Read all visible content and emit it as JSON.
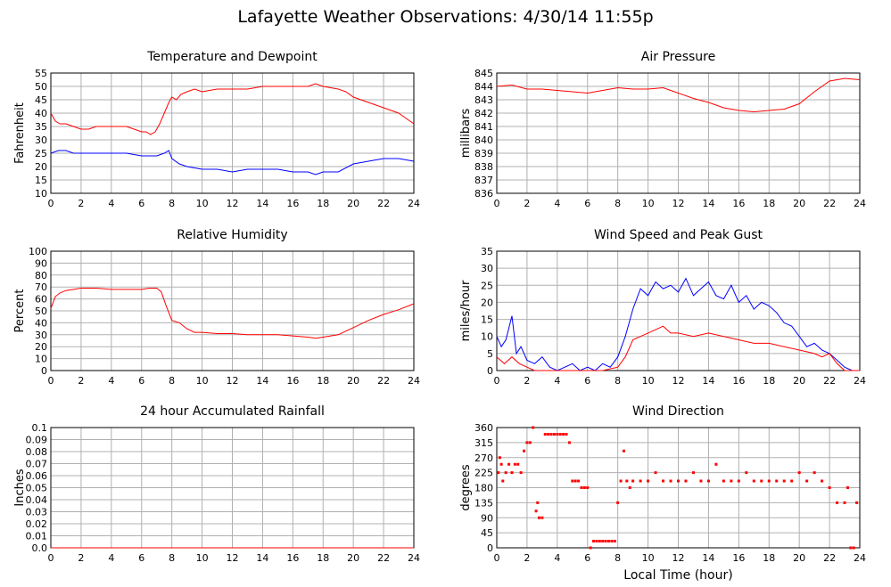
{
  "title": "Lafayette Weather Observations: 4/30/14 11:55p",
  "xlabel_bottom": "Local Time (hour)",
  "colors": {
    "red": "#ff0000",
    "blue": "#0000ff",
    "grid": "#b0b0b0"
  },
  "chart_data": [
    {
      "id": "temp",
      "type": "line",
      "title": "Temperature and Dewpoint",
      "ylabel": "Fahrenheit",
      "xlabel": "",
      "xlim": [
        0,
        24
      ],
      "ylim": [
        10,
        55
      ],
      "yticks": [
        "10",
        "15",
        "20",
        "25",
        "30",
        "35",
        "40",
        "45",
        "50",
        "55"
      ],
      "xticks": [
        "0",
        "2",
        "4",
        "6",
        "8",
        "10",
        "12",
        "14",
        "16",
        "18",
        "20",
        "22",
        "24"
      ],
      "series": [
        {
          "color": "#ff0000",
          "x": [
            0,
            0.3,
            0.6,
            1,
            1.5,
            2,
            2.5,
            3,
            3.5,
            4,
            4.5,
            5,
            5.5,
            6,
            6.3,
            6.6,
            6.9,
            7.2,
            7.5,
            7.8,
            8,
            8.3,
            8.6,
            9,
            9.5,
            10,
            11,
            12,
            13,
            14,
            15,
            16,
            17,
            17.5,
            18,
            19,
            19.5,
            20,
            21,
            22,
            23,
            24
          ],
          "y": [
            40,
            37,
            36,
            36,
            35,
            34,
            34,
            35,
            35,
            35,
            35,
            35,
            34,
            33,
            33,
            32,
            33,
            36,
            40,
            44,
            46,
            45,
            47,
            48,
            49,
            48,
            49,
            49,
            49,
            50,
            50,
            50,
            50,
            51,
            50,
            49,
            48,
            46,
            44,
            42,
            40,
            36
          ]
        },
        {
          "color": "#0000ff",
          "x": [
            0,
            0.5,
            1,
            1.5,
            2,
            3,
            4,
            5,
            6,
            7,
            7.5,
            7.8,
            8,
            8.5,
            9,
            10,
            11,
            12,
            13,
            14,
            15,
            16,
            17,
            17.5,
            18,
            18.5,
            19,
            20,
            21,
            22,
            23,
            24
          ],
          "y": [
            25,
            26,
            26,
            25,
            25,
            25,
            25,
            25,
            24,
            24,
            25,
            26,
            23,
            21,
            20,
            19,
            19,
            18,
            19,
            19,
            19,
            18,
            18,
            17,
            18,
            18,
            18,
            21,
            22,
            23,
            23,
            22
          ]
        }
      ]
    },
    {
      "id": "pressure",
      "type": "line",
      "title": "Air Pressure",
      "ylabel": "millibars",
      "xlabel": "",
      "xlim": [
        0,
        24
      ],
      "ylim": [
        836,
        845
      ],
      "yticks": [
        "836",
        "837",
        "838",
        "839",
        "840",
        "841",
        "842",
        "843",
        "844",
        "845"
      ],
      "xticks": [
        "0",
        "2",
        "4",
        "6",
        "8",
        "10",
        "12",
        "14",
        "16",
        "18",
        "20",
        "22",
        "24"
      ],
      "series": [
        {
          "color": "#ff0000",
          "x": [
            0,
            1,
            2,
            3,
            4,
            5,
            6,
            7,
            8,
            9,
            10,
            11,
            12,
            13,
            14,
            15,
            16,
            17,
            18,
            19,
            20,
            21,
            22,
            23,
            24
          ],
          "y": [
            844.0,
            844.1,
            843.8,
            843.8,
            843.7,
            843.6,
            843.5,
            843.7,
            843.9,
            843.8,
            843.8,
            843.9,
            843.5,
            843.1,
            842.8,
            842.4,
            842.2,
            842.1,
            842.2,
            842.3,
            842.7,
            843.6,
            844.4,
            844.6,
            844.5
          ]
        }
      ]
    },
    {
      "id": "humidity",
      "type": "line",
      "title": "Relative Humidity",
      "ylabel": "Percent",
      "xlabel": "",
      "xlim": [
        0,
        24
      ],
      "ylim": [
        0,
        100
      ],
      "yticks": [
        "0",
        "10",
        "20",
        "30",
        "40",
        "50",
        "60",
        "70",
        "80",
        "90",
        "100"
      ],
      "xticks": [
        "0",
        "2",
        "4",
        "6",
        "8",
        "10",
        "12",
        "14",
        "16",
        "18",
        "20",
        "22",
        "24"
      ],
      "series": [
        {
          "color": "#ff0000",
          "x": [
            0,
            0.3,
            0.6,
            1,
            2,
            3,
            4,
            5,
            6,
            6.5,
            7,
            7.3,
            7.6,
            8,
            8.5,
            9,
            9.5,
            10,
            11,
            12,
            13,
            14,
            15,
            16,
            17,
            17.5,
            18,
            19,
            20,
            21,
            22,
            23,
            24
          ],
          "y": [
            52,
            62,
            65,
            67,
            69,
            69,
            68,
            68,
            68,
            69,
            69,
            66,
            55,
            42,
            40,
            35,
            32,
            32,
            31,
            31,
            30,
            30,
            30,
            29,
            28,
            27,
            28,
            30,
            36,
            42,
            47,
            51,
            56
          ]
        }
      ]
    },
    {
      "id": "wind",
      "type": "line",
      "title": "Wind Speed and Peak Gust",
      "ylabel": "miles/hour",
      "xlabel": "",
      "xlim": [
        0,
        24
      ],
      "ylim": [
        0,
        35
      ],
      "yticks": [
        "0",
        "5",
        "10",
        "15",
        "20",
        "25",
        "30",
        "35"
      ],
      "xticks": [
        "0",
        "2",
        "4",
        "6",
        "8",
        "10",
        "12",
        "14",
        "16",
        "18",
        "20",
        "22",
        "24"
      ],
      "series": [
        {
          "color": "#0000ff",
          "x": [
            0,
            0.3,
            0.6,
            1,
            1.3,
            1.6,
            2,
            2.5,
            3,
            3.5,
            4,
            4.5,
            5,
            5.5,
            6,
            6.5,
            7,
            7.5,
            8,
            8.5,
            9,
            9.5,
            10,
            10.5,
            11,
            11.5,
            12,
            12.5,
            13,
            13.5,
            14,
            14.5,
            15,
            15.5,
            16,
            16.5,
            17,
            17.5,
            18,
            18.5,
            19,
            19.5,
            20,
            20.5,
            21,
            21.5,
            22,
            22.5,
            23,
            23.5,
            24
          ],
          "y": [
            10,
            7,
            9,
            16,
            5,
            7,
            3,
            2,
            4,
            1,
            0,
            1,
            2,
            0,
            1,
            0,
            2,
            1,
            4,
            10,
            18,
            24,
            22,
            26,
            24,
            25,
            23,
            27,
            22,
            24,
            26,
            22,
            21,
            25,
            20,
            22,
            18,
            20,
            19,
            17,
            14,
            13,
            10,
            7,
            8,
            6,
            5,
            3,
            1,
            0,
            0
          ]
        },
        {
          "color": "#ff0000",
          "x": [
            0,
            0.5,
            1,
            1.5,
            2,
            2.5,
            3,
            4,
            5,
            6,
            7,
            8,
            8.5,
            9,
            9.5,
            10,
            10.5,
            11,
            11.5,
            12,
            13,
            14,
            15,
            16,
            17,
            18,
            19,
            20,
            21,
            21.5,
            22,
            22.5,
            23,
            24
          ],
          "y": [
            4,
            2,
            4,
            2,
            1,
            0,
            0,
            0,
            0,
            0,
            0,
            1,
            4,
            9,
            10,
            11,
            12,
            13,
            11,
            11,
            10,
            11,
            10,
            9,
            8,
            8,
            7,
            6,
            5,
            4,
            5,
            2,
            0,
            0
          ]
        }
      ]
    },
    {
      "id": "rain",
      "type": "line",
      "title": "24 hour Accumulated Rainfall",
      "ylabel": "Inches",
      "xlabel": "",
      "xlim": [
        0,
        24
      ],
      "ylim": [
        0,
        0.1
      ],
      "yticks": [
        "0.0",
        "0.01",
        "0.02",
        "0.03",
        "0.04",
        "0.05",
        "0.06",
        "0.07",
        "0.08",
        "0.09",
        "0.1"
      ],
      "xticks": [
        "0",
        "2",
        "4",
        "6",
        "8",
        "10",
        "12",
        "14",
        "16",
        "18",
        "20",
        "22",
        "24"
      ],
      "series": [
        {
          "color": "#ff0000",
          "x": [
            0,
            24
          ],
          "y": [
            0,
            0
          ]
        }
      ]
    },
    {
      "id": "direction",
      "type": "scatter",
      "title": "Wind Direction",
      "ylabel": "degrees",
      "xlabel": "Local Time (hour)",
      "xlim": [
        0,
        24
      ],
      "ylim": [
        0,
        360
      ],
      "yticks": [
        "0",
        "45",
        "90",
        "135",
        "180",
        "225",
        "270",
        "315",
        "360"
      ],
      "xticks": [
        "0",
        "2",
        "4",
        "6",
        "8",
        "10",
        "12",
        "14",
        "16",
        "18",
        "20",
        "22",
        "24"
      ],
      "series": [
        {
          "color": "#ff0000",
          "x": [
            0.1,
            0.2,
            0.3,
            0.4,
            0.6,
            0.8,
            1.0,
            1.2,
            1.4,
            1.6,
            1.8,
            2.0,
            2.2,
            2.4,
            2.6,
            2.7,
            2.8,
            3.0,
            3.2,
            3.4,
            3.6,
            3.8,
            4.0,
            4.2,
            4.4,
            4.6,
            4.8,
            5.0,
            5.2,
            5.4,
            5.6,
            5.8,
            6.0,
            6.2,
            6.4,
            6.6,
            6.8,
            7.0,
            7.2,
            7.4,
            7.6,
            7.8,
            8.0,
            8.2,
            8.4,
            8.6,
            8.8,
            9.0,
            9.5,
            10,
            10.5,
            11,
            11.5,
            12,
            12.5,
            13,
            13.5,
            14,
            14.5,
            15,
            15.5,
            16,
            16.5,
            17,
            17.5,
            18,
            18.5,
            19,
            19.5,
            20,
            20.5,
            21,
            21.5,
            22,
            22.5,
            23,
            23.2,
            23.4,
            23.6,
            23.8
          ],
          "y": [
            225,
            270,
            250,
            200,
            225,
            250,
            225,
            250,
            250,
            225,
            290,
            315,
            315,
            360,
            110,
            135,
            90,
            90,
            340,
            340,
            340,
            340,
            340,
            340,
            340,
            340,
            315,
            200,
            200,
            200,
            180,
            180,
            180,
            0,
            20,
            20,
            20,
            20,
            20,
            20,
            20,
            20,
            135,
            200,
            290,
            200,
            180,
            200,
            200,
            200,
            225,
            200,
            200,
            200,
            200,
            225,
            200,
            200,
            250,
            200,
            200,
            200,
            225,
            200,
            200,
            200,
            200,
            200,
            200,
            225,
            200,
            225,
            200,
            180,
            135,
            135,
            180,
            0,
            0,
            135
          ]
        }
      ]
    }
  ]
}
